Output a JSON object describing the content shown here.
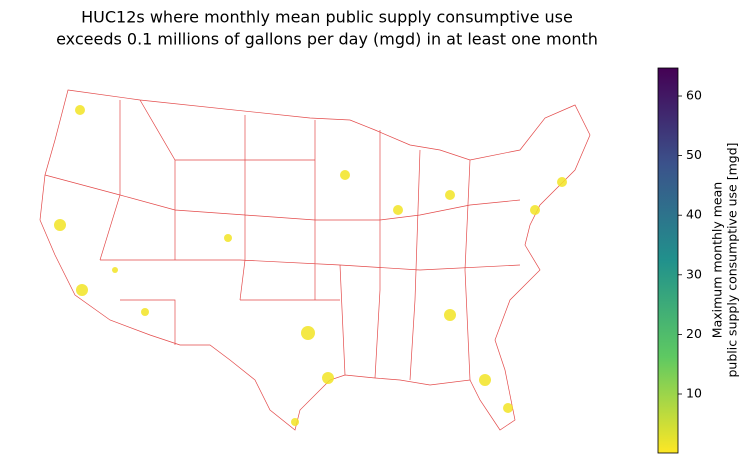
{
  "map": {
    "title": [
      "HUC12s where monthly mean public supply consumptive use",
      "exceeds 0.1 millions of gallons per day (mgd) in at least one month"
    ],
    "colorbar": {
      "label": [
        "Maximum monthly mean",
        "public supply consumptive use [mgd]"
      ],
      "range": [
        0.1,
        64.7
      ],
      "ticks": [
        10,
        20,
        30,
        40,
        50,
        60
      ],
      "colors": [
        "#fde725",
        "#5ec962",
        "#21918c",
        "#3b528b",
        "#440154"
      ]
    }
  }
}
